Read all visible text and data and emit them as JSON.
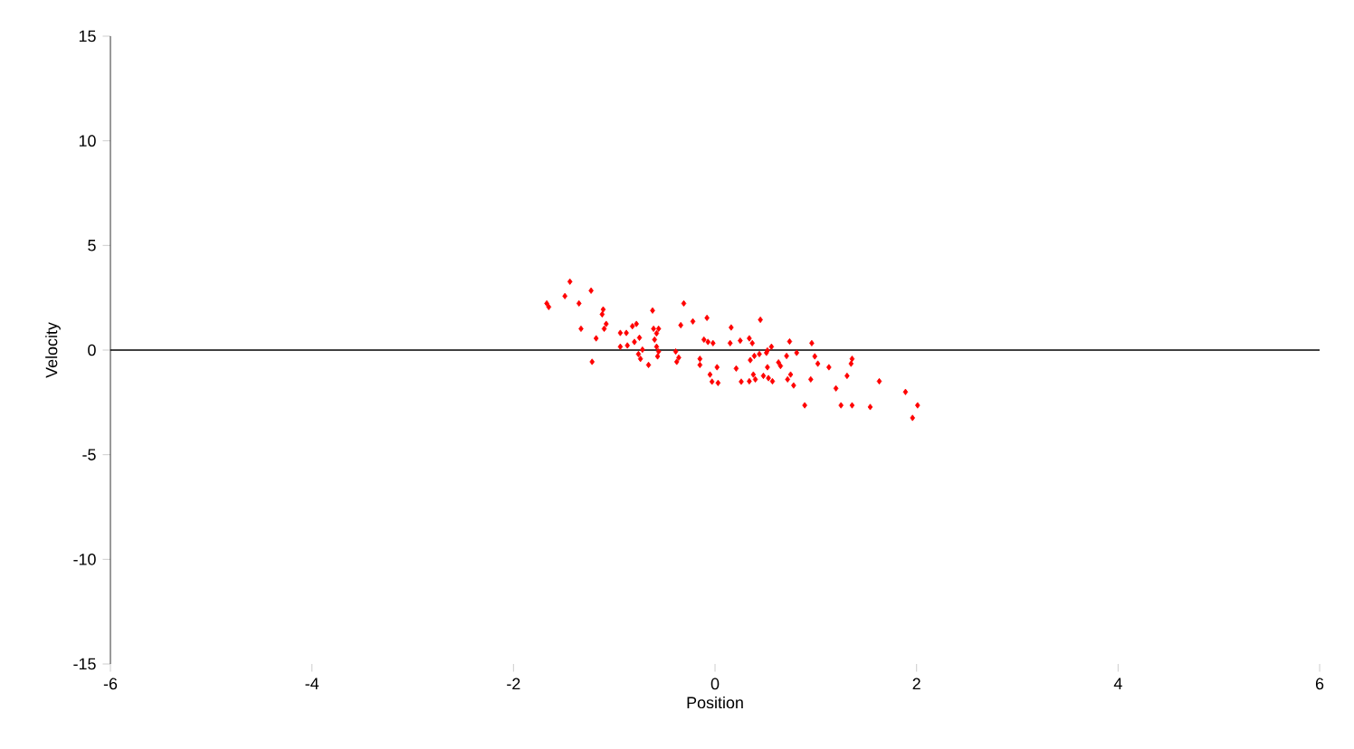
{
  "chart_data": {
    "type": "scatter",
    "xlabel": "Position",
    "ylabel": "Velocity",
    "xlim": [
      -6,
      6
    ],
    "ylim": [
      -15,
      15
    ],
    "xticks": [
      -6,
      -4,
      -2,
      0,
      2,
      4,
      6
    ],
    "yticks": [
      -15,
      -10,
      -5,
      0,
      5,
      10,
      15
    ],
    "grid": false,
    "marker": "diamond",
    "ref_lines": [
      {
        "axis": "y",
        "value": 0,
        "color": "#000000"
      }
    ],
    "series": [
      {
        "color": "#ff0000",
        "x": [
          -1.44,
          -1.67,
          -1.65,
          -1.49,
          -1.35,
          -1.23,
          -1.11,
          -1.12,
          -1.08,
          -1.1,
          -1.33,
          -1.18,
          -1.22,
          -0.94,
          -0.88,
          -0.94,
          -0.87,
          -0.82,
          -0.78,
          -0.8,
          -0.75,
          -0.76,
          -0.72,
          -0.74,
          -0.66,
          -0.62,
          -0.61,
          -0.56,
          -0.58,
          -0.6,
          -0.58,
          -0.56,
          -0.57,
          -0.31,
          -0.34,
          -0.22,
          -0.08,
          -0.39,
          -0.36,
          -0.38,
          -0.15,
          -0.15,
          0.02,
          -0.05,
          -0.03,
          0.03,
          -0.11,
          -0.07,
          -0.02,
          0.16,
          0.15,
          0.21,
          0.26,
          0.25,
          0.45,
          0.34,
          0.37,
          0.34,
          0.4,
          0.38,
          0.35,
          0.39,
          0.44,
          0.51,
          0.52,
          0.48,
          0.53,
          0.57,
          0.52,
          0.56,
          0.63,
          0.65,
          0.71,
          0.74,
          0.81,
          0.75,
          0.72,
          0.78,
          0.89,
          0.96,
          0.99,
          1.02,
          0.95,
          1.13,
          1.2,
          1.25,
          1.31,
          1.35,
          1.36,
          1.36,
          1.54,
          1.63,
          1.89,
          1.96,
          2.01
        ],
        "values": [
          3.27,
          2.23,
          2.06,
          2.58,
          2.23,
          2.84,
          1.94,
          1.71,
          1.25,
          1.02,
          1.02,
          0.56,
          -0.56,
          0.82,
          0.82,
          0.16,
          0.22,
          1.14,
          1.25,
          0.39,
          0.59,
          -0.19,
          0.02,
          -0.42,
          -0.71,
          1.89,
          1.02,
          1.02,
          0.8,
          0.5,
          0.16,
          -0.07,
          -0.3,
          2.23,
          1.19,
          1.37,
          1.54,
          -0.07,
          -0.36,
          -0.56,
          -0.42,
          -0.71,
          -0.82,
          -1.17,
          -1.51,
          -1.57,
          0.5,
          0.39,
          0.33,
          1.08,
          0.33,
          -0.88,
          -1.51,
          0.45,
          1.45,
          0.56,
          0.33,
          -1.49,
          -1.4,
          -1.17,
          -0.48,
          -0.28,
          -0.19,
          -0.13,
          -0.82,
          -1.23,
          -1.34,
          -1.49,
          -0.02,
          0.16,
          -0.59,
          -0.76,
          -0.28,
          0.41,
          -0.13,
          -1.17,
          -1.4,
          -1.69,
          -2.64,
          0.33,
          -0.3,
          -0.65,
          -1.4,
          -0.82,
          -1.83,
          -2.64,
          -1.23,
          -0.65,
          -0.42,
          -2.64,
          -2.72,
          -1.49,
          -2.0,
          -3.24,
          -2.64
        ]
      }
    ]
  }
}
